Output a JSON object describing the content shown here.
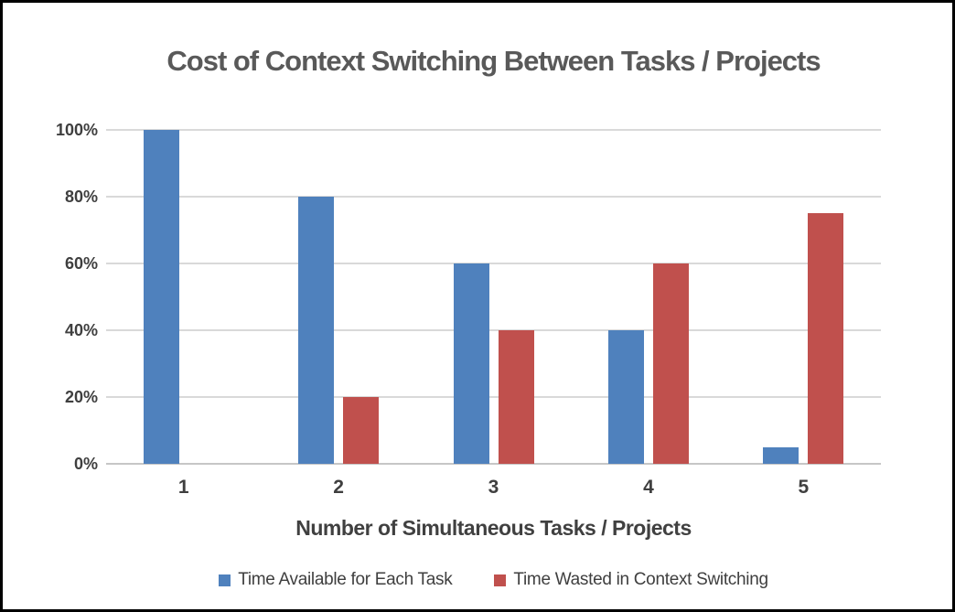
{
  "chart_data": {
    "type": "bar",
    "title": "Cost of Context Switching Between Tasks / Projects",
    "xlabel": "Number of Simultaneous Tasks / Projects",
    "ylabel": "",
    "categories": [
      "1",
      "2",
      "3",
      "4",
      "5"
    ],
    "series": [
      {
        "name": "Time Available for Each Task",
        "color": "#4F81BD",
        "values": [
          100,
          80,
          60,
          40,
          5
        ]
      },
      {
        "name": "Time Wasted in Context Switching",
        "color": "#C0504D",
        "values": [
          0,
          20,
          40,
          60,
          75
        ]
      }
    ],
    "y_ticks": [
      0,
      20,
      40,
      60,
      80,
      100
    ],
    "y_tick_labels": [
      "0%",
      "20%",
      "40%",
      "60%",
      "80%",
      "100%"
    ],
    "ylim": [
      0,
      100
    ],
    "grid": true,
    "legend_position": "bottom",
    "colors": {
      "title_text": "#595959",
      "axis_text": "#3F3F3F",
      "gridline": "#D9D9D9",
      "background": "#FFFFFF",
      "frame_border": "#000000"
    }
  }
}
